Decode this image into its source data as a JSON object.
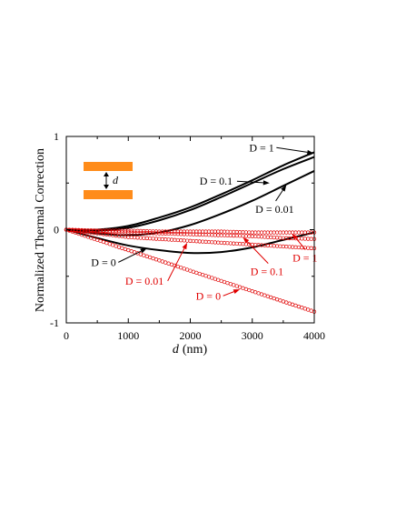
{
  "chart_data": {
    "type": "line",
    "xlabel_var": "d",
    "xlabel_unit": "(nm)",
    "ylabel": "Normalized Thermal Correction",
    "xlim": [
      0,
      4000
    ],
    "ylim": [
      -1,
      1
    ],
    "x_ticks": [
      "0",
      "1000",
      "2000",
      "3000",
      "4000"
    ],
    "y_ticks": [
      "-1",
      "0",
      "1"
    ],
    "grid": false,
    "inset": {
      "label": "d",
      "colors": {
        "plate": "#FF8C1A"
      }
    },
    "colors": {
      "black": "#000000",
      "red": "#E00000"
    },
    "series": [
      {
        "group": "black",
        "style": "solid",
        "label": "D = 1",
        "x": [
          0,
          500,
          1000,
          1500,
          2000,
          2500,
          3000,
          3500,
          4000
        ],
        "y": [
          0,
          0,
          0.04,
          0.13,
          0.24,
          0.38,
          0.53,
          0.69,
          0.83
        ]
      },
      {
        "group": "black",
        "style": "solid",
        "label": "D = 0.1",
        "x": [
          0,
          500,
          1000,
          1500,
          2000,
          2500,
          3000,
          3500,
          4000
        ],
        "y": [
          0,
          -0.01,
          0.02,
          0.1,
          0.21,
          0.35,
          0.5,
          0.65,
          0.78
        ]
      },
      {
        "group": "black",
        "style": "solid",
        "label": "D = 0.01",
        "x": [
          0,
          500,
          1000,
          1500,
          2000,
          2500,
          3000,
          3500,
          4000
        ],
        "y": [
          0,
          -0.04,
          -0.06,
          -0.03,
          0.05,
          0.17,
          0.31,
          0.47,
          0.63
        ]
      },
      {
        "group": "black",
        "style": "solid",
        "label": "D = 0",
        "x": [
          0,
          500,
          1000,
          1500,
          2000,
          2500,
          3000,
          3500,
          4000
        ],
        "y": [
          0,
          -0.09,
          -0.17,
          -0.22,
          -0.25,
          -0.24,
          -0.19,
          -0.11,
          -0.03
        ]
      },
      {
        "group": "red",
        "style": "circles",
        "label": "D = 1",
        "x": [
          0,
          500,
          1000,
          1500,
          2000,
          2500,
          3000,
          3500,
          4000
        ],
        "y": [
          0,
          -0.01,
          -0.01,
          -0.02,
          -0.02,
          -0.02,
          -0.03,
          -0.03,
          -0.03
        ]
      },
      {
        "group": "red",
        "style": "circles",
        "label": "D = 0.1",
        "x": [
          0,
          500,
          1000,
          1500,
          2000,
          2500,
          3000,
          3500,
          4000
        ],
        "y": [
          0,
          -0.02,
          -0.03,
          -0.04,
          -0.05,
          -0.06,
          -0.07,
          -0.09,
          -0.1
        ]
      },
      {
        "group": "red",
        "style": "circles",
        "label": "D = 0.01",
        "x": [
          0,
          500,
          1000,
          1500,
          2000,
          2500,
          3000,
          3500,
          4000
        ],
        "y": [
          0,
          -0.04,
          -0.08,
          -0.1,
          -0.12,
          -0.14,
          -0.16,
          -0.18,
          -0.2
        ]
      },
      {
        "group": "red",
        "style": "circles",
        "label": "D = 0",
        "x": [
          0,
          500,
          1000,
          1500,
          2000,
          2500,
          3000,
          3500,
          4000
        ],
        "y": [
          0,
          -0.11,
          -0.22,
          -0.33,
          -0.44,
          -0.55,
          -0.66,
          -0.77,
          -0.88
        ]
      }
    ],
    "annotations": [
      {
        "text": "D = 1",
        "group": "black",
        "text_at": [
          2950,
          0.88
        ],
        "arrow_to": [
          3990,
          0.82
        ]
      },
      {
        "text": "D = 0.1",
        "group": "black",
        "text_at": [
          2150,
          0.52
        ],
        "arrow_to": [
          3280,
          0.5
        ]
      },
      {
        "text": "D = 0.01",
        "group": "black",
        "text_at": [
          3050,
          0.22
        ],
        "arrow_to": [
          3550,
          0.48
        ]
      },
      {
        "text": "D = 0",
        "group": "black",
        "text_at": [
          400,
          -0.35
        ],
        "arrow_to": [
          1300,
          -0.2
        ]
      },
      {
        "text": "D = 1",
        "group": "red",
        "text_at": [
          3650,
          -0.3
        ],
        "arrow_to": [
          3640,
          -0.04
        ]
      },
      {
        "text": "D = 0.1",
        "group": "red",
        "text_at": [
          2970,
          -0.45
        ],
        "arrow_to": [
          2850,
          -0.08
        ]
      },
      {
        "text": "D = 0.01",
        "group": "red",
        "text_at": [
          950,
          -0.55
        ],
        "arrow_to": [
          1950,
          -0.14
        ]
      },
      {
        "text": "D = 0",
        "group": "red",
        "text_at": [
          2090,
          -0.71
        ],
        "arrow_to": [
          2800,
          -0.64
        ]
      }
    ]
  }
}
